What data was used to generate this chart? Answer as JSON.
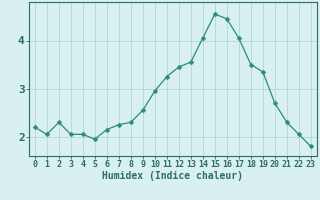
{
  "x": [
    0,
    1,
    2,
    3,
    4,
    5,
    6,
    7,
    8,
    9,
    10,
    11,
    12,
    13,
    14,
    15,
    16,
    17,
    18,
    19,
    20,
    21,
    22,
    23
  ],
  "y": [
    2.2,
    2.05,
    2.3,
    2.05,
    2.05,
    1.95,
    2.15,
    2.25,
    2.3,
    2.55,
    2.95,
    3.25,
    3.45,
    3.55,
    4.05,
    4.55,
    4.45,
    4.05,
    3.5,
    3.35,
    2.7,
    2.3,
    2.05,
    1.8
  ],
  "line_color": "#2e8b7a",
  "marker": "D",
  "marker_size": 2.5,
  "bg_color": "#d8f0ef",
  "grid_color": "#b0d8d5",
  "axis_color": "#2e6b6b",
  "xlabel": "Humidex (Indice chaleur)",
  "xlabel_fontsize": 7,
  "ylabel": "",
  "yticks": [
    2,
    3,
    4
  ],
  "xticks": [
    0,
    1,
    2,
    3,
    4,
    5,
    6,
    7,
    8,
    9,
    10,
    11,
    12,
    13,
    14,
    15,
    16,
    17,
    18,
    19,
    20,
    21,
    22,
    23
  ],
  "xlim": [
    -0.5,
    23.5
  ],
  "ylim": [
    1.6,
    4.8
  ],
  "tick_fontsize": 6,
  "title": ""
}
